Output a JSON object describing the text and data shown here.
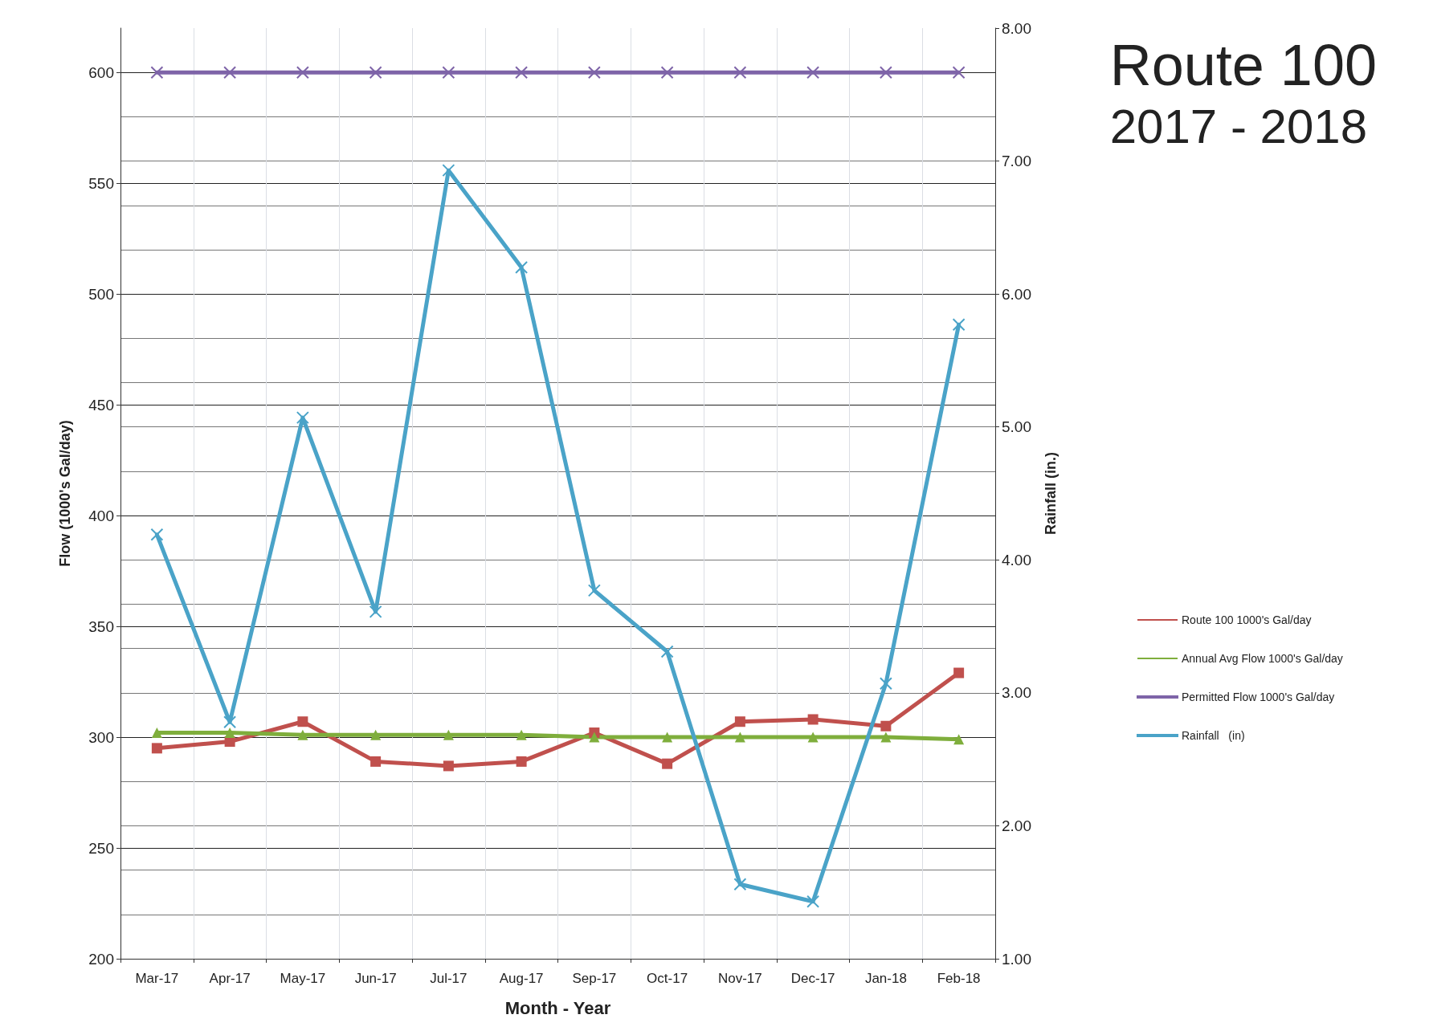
{
  "chart_data": {
    "type": "line",
    "title": "Route 100\n2017 - 2018",
    "xlabel": "Month - Year",
    "ylabel": "Flow (1000's Gal/day)",
    "y2label": "Rainfall (in.)",
    "categories": [
      "Mar-17",
      "Apr-17",
      "May-17",
      "Jun-17",
      "Jul-17",
      "Aug-17",
      "Sep-17",
      "Oct-17",
      "Nov-17",
      "Dec-17",
      "Jan-18",
      "Feb-18"
    ],
    "series": [
      {
        "name": "Route 100 1000's Gal/day",
        "color": "#c0504d",
        "marker": "square",
        "values": [
          295,
          298,
          307,
          289,
          287,
          289,
          302,
          288,
          307,
          308,
          305,
          329
        ]
      },
      {
        "name": "Annual Avg Flow 1000's Gal/day",
        "color": "#7fae3c",
        "marker": "triangle",
        "values": [
          302,
          302,
          301,
          301,
          301,
          301,
          300,
          300,
          300,
          300,
          300,
          299
        ]
      },
      {
        "name": "Permitted Flow 1000's Gal/day",
        "color": "#7e64a8",
        "marker": "cross",
        "values": [
          600,
          600,
          600,
          600,
          600,
          600,
          600,
          600,
          600,
          600,
          600,
          600
        ]
      },
      {
        "name": "Rainfall   (in)",
        "color": "#4aa3c8",
        "marker": "cross",
        "axis": "y2",
        "values": [
          4.19,
          2.78,
          5.07,
          3.61,
          6.93,
          6.2,
          3.77,
          3.31,
          1.56,
          1.43,
          3.07,
          5.77
        ]
      }
    ],
    "ylim": [
      200,
      620
    ],
    "yticks": [
      200,
      250,
      300,
      350,
      400,
      450,
      500,
      550,
      600
    ],
    "y2lim": [
      1,
      8
    ],
    "y2ticks": [
      {
        "value": 1,
        "label": "1.00"
      },
      {
        "value": 2,
        "label": "2.00"
      },
      {
        "value": 3,
        "label": "3.00"
      },
      {
        "value": 4,
        "label": "4.00"
      },
      {
        "value": 5,
        "label": "5.00"
      },
      {
        "value": 6,
        "label": "6.00"
      },
      {
        "value": 7,
        "label": "7.00"
      },
      {
        "value": 8,
        "label": "8.00"
      }
    ],
    "grid": true,
    "legend": "right"
  }
}
